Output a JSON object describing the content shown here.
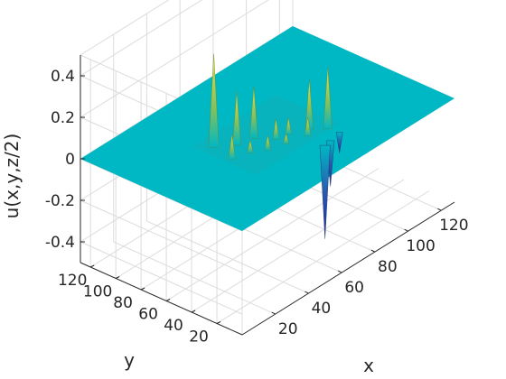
{
  "chart_data": {
    "type": "surface3d",
    "title": "",
    "xlabel": "x",
    "ylabel": "y",
    "zlabel": "u(x,y,z/2)",
    "x_ticks": [
      20,
      40,
      60,
      80,
      100,
      120
    ],
    "y_ticks": [
      20,
      40,
      60,
      80,
      100,
      120
    ],
    "z_ticks": [
      -0.4,
      -0.2,
      0,
      0.2,
      0.4
    ],
    "z_tick_labels": [
      "-0.4",
      "-0.2",
      "0",
      "0.2",
      "0.4"
    ],
    "xlim": [
      0,
      128
    ],
    "ylim": [
      0,
      128
    ],
    "zlim": [
      -0.5,
      0.5
    ],
    "grid": true,
    "colormap": "parula",
    "surface_color": "#00b8c4",
    "peak_color": "#f0e040",
    "trough_color": "#1a2a9a",
    "baseline_z": 0,
    "features": [
      {
        "x": 40,
        "y": 75,
        "z": 0.45
      },
      {
        "x": 42,
        "y": 78,
        "z": 0.35
      },
      {
        "x": 47,
        "y": 66,
        "z": 0.26
      },
      {
        "x": 55,
        "y": 63,
        "z": 0.25
      },
      {
        "x": 74,
        "y": 44,
        "z": 0.24
      },
      {
        "x": 79,
        "y": 36,
        "z": 0.3
      },
      {
        "x": 38,
        "y": 58,
        "z": 0.12
      },
      {
        "x": 60,
        "y": 52,
        "z": 0.1
      },
      {
        "x": 66,
        "y": 50,
        "z": 0.08
      },
      {
        "x": 52,
        "y": 48,
        "z": 0.07
      },
      {
        "x": 46,
        "y": 54,
        "z": 0.06
      },
      {
        "x": 70,
        "y": 40,
        "z": 0.09
      },
      {
        "x": 60,
        "y": 44,
        "z": 0.05
      },
      {
        "x": 69,
        "y": 25,
        "z": -0.45
      },
      {
        "x": 73,
        "y": 26,
        "z": -0.22
      },
      {
        "x": 80,
        "y": 28,
        "z": -0.1
      }
    ]
  }
}
